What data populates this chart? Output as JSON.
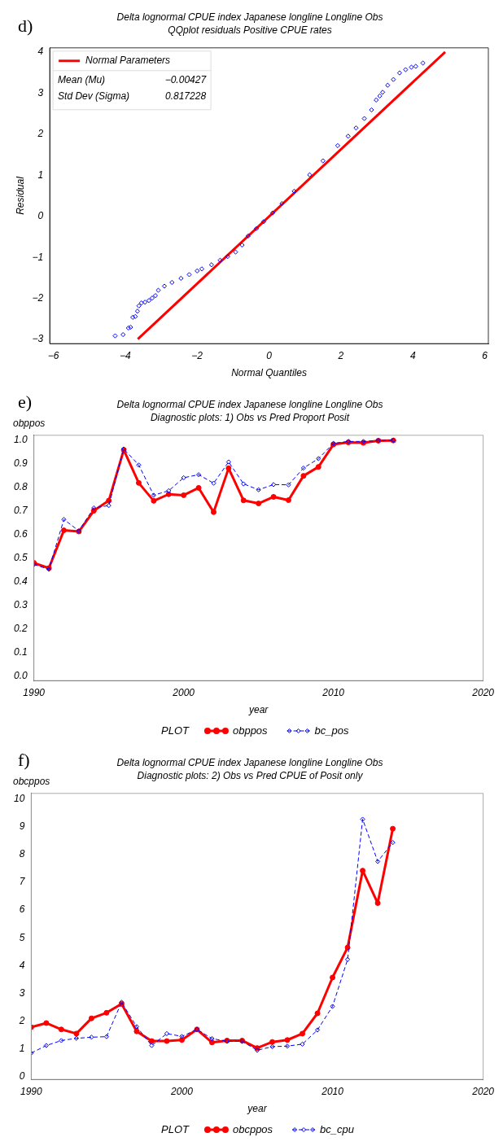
{
  "chart_data": [
    {
      "type": "scatter",
      "title": "Delta lognormal CPUE index Japanese longline Longline Obs",
      "subtitle": "QQplot residuals Positive CPUE rates",
      "xlabel": "Normal Quantiles",
      "ylabel": "Residual",
      "annotations": [
        "d)",
        "Mean (Mu)",
        "−0.00427",
        "Std Dev (Sigma)",
        "0.817228"
      ],
      "legend": "top left",
      "xlim": [
        -6.1,
        6.1
      ],
      "ylim": [
        -3.1,
        4.1
      ],
      "xticks": [
        -6,
        -4,
        -2,
        0,
        2,
        4,
        6
      ],
      "yticks": [
        -3,
        -2,
        -1,
        0,
        1,
        2,
        3,
        4
      ],
      "series": [
        {
          "type": "scatter",
          "color": "#0000ff",
          "marker": "diamond",
          "x": [
            -4.28,
            -4.06,
            -3.91,
            -3.85,
            -3.79,
            -3.72,
            -3.66,
            -3.62,
            -3.55,
            -3.45,
            -3.34,
            -3.25,
            -3.16,
            -3.08,
            -2.91,
            -2.7,
            -2.45,
            -2.22,
            -2.0,
            -1.87,
            -1.6,
            -1.36,
            -1.15,
            -0.93,
            -0.75,
            -0.58,
            -0.35,
            -0.15,
            0.1,
            0.36,
            0.7,
            1.13,
            1.5,
            1.91,
            2.2,
            2.42,
            2.65,
            2.85,
            2.98,
            3.08,
            3.16,
            3.3,
            3.46,
            3.63,
            3.8,
            3.96,
            4.08,
            4.28
          ],
          "values": [
            -2.91,
            -2.88,
            -2.72,
            -2.7,
            -2.46,
            -2.44,
            -2.31,
            -2.18,
            -2.11,
            -2.09,
            -2.05,
            -1.99,
            -1.93,
            -1.8,
            -1.7,
            -1.61,
            -1.51,
            -1.42,
            -1.33,
            -1.28,
            -1.18,
            -1.07,
            -0.98,
            -0.87,
            -0.7,
            -0.48,
            -0.3,
            -0.13,
            0.08,
            0.31,
            0.61,
            1.01,
            1.35,
            1.72,
            1.95,
            2.15,
            2.38,
            2.59,
            2.83,
            2.93,
            3.02,
            3.19,
            3.33,
            3.49,
            3.57,
            3.63,
            3.65,
            3.73
          ]
        },
        {
          "type": "line",
          "name": "Normal Parameters",
          "color": "#ff0000",
          "marker": "none",
          "line_style": "solid",
          "x": [
            -3.65,
            4.9
          ],
          "values": [
            -2.99,
            4.0
          ]
        }
      ]
    },
    {
      "type": "line",
      "title": "Delta lognormal CPUE index Japanese longline Longline Obs",
      "subtitle": "Diagnostic plots: 1) Obs vs Pred Proport Posit",
      "xlabel": "year",
      "ylabel": "obppos",
      "legend_title": "PLOT",
      "legend": "bottom",
      "annotations": [
        "e)"
      ],
      "xlim": [
        1990,
        2020
      ],
      "ylim": [
        -0.02,
        1.02
      ],
      "xticks": [
        1990,
        2000,
        2010,
        2020
      ],
      "yticks": [
        {
          "value": 0,
          "label": "0.0"
        },
        0.1,
        0.2,
        0.3,
        0.4,
        0.5,
        0.6,
        0.7,
        0.8,
        0.9,
        {
          "value": 1,
          "label": "1.0"
        }
      ],
      "x": [
        1990,
        1991,
        1992,
        1993,
        1994,
        1995,
        1996,
        1997,
        1998,
        1999,
        2000,
        2001,
        2002,
        2003,
        2004,
        2005,
        2006,
        2007,
        2008,
        2009,
        2010,
        2011,
        2012,
        2013,
        2014
      ],
      "series": [
        {
          "name": "obppos",
          "color": "#ff0000",
          "marker": "circle",
          "line_style": "solid",
          "values": [
            0.479,
            0.457,
            0.617,
            0.612,
            0.7,
            0.743,
            0.958,
            0.818,
            0.742,
            0.77,
            0.766,
            0.797,
            0.694,
            0.88,
            0.744,
            0.731,
            0.759,
            0.745,
            0.848,
            0.886,
            0.981,
            0.99,
            0.988,
            0.997,
            0.998
          ]
        },
        {
          "name": "bc_pos",
          "color": "#0000ff",
          "marker": "diamond",
          "line_style": "dashed",
          "values": [
            0.472,
            0.452,
            0.663,
            0.615,
            0.712,
            0.722,
            0.962,
            0.894,
            0.766,
            0.785,
            0.84,
            0.853,
            0.817,
            0.907,
            0.814,
            0.789,
            0.811,
            0.81,
            0.881,
            0.921,
            0.986,
            0.994,
            0.994,
            0.998,
            0.999
          ]
        }
      ]
    },
    {
      "type": "line",
      "title": "Delta lognormal CPUE index Japanese longline Longline Obs",
      "subtitle": "Diagnostic plots: 2) Obs vs Pred CPUE of Posit only",
      "xlabel": "year",
      "ylabel": "obcppos",
      "legend_title": "PLOT",
      "legend": "bottom",
      "annotations": [
        "f)"
      ],
      "xlim": [
        1990,
        2020
      ],
      "ylim": [
        -0.1,
        10.2
      ],
      "xticks": [
        1990,
        2000,
        2010,
        2020
      ],
      "yticks": [
        0,
        1,
        2,
        3,
        4,
        5,
        6,
        7,
        8,
        9,
        10
      ],
      "x": [
        1990,
        1991,
        1992,
        1993,
        1994,
        1995,
        1996,
        1997,
        1998,
        1999,
        2000,
        2001,
        2002,
        2003,
        2004,
        2005,
        2006,
        2007,
        2008,
        2009,
        2010,
        2011,
        2012,
        2013,
        2014
      ],
      "series": [
        {
          "name": "obcppos",
          "color": "#ff0000",
          "marker": "circle",
          "line_style": "solid",
          "values": [
            1.78,
            1.93,
            1.7,
            1.55,
            2.1,
            2.3,
            2.62,
            1.63,
            1.28,
            1.28,
            1.32,
            1.7,
            1.23,
            1.3,
            1.3,
            1.03,
            1.25,
            1.32,
            1.55,
            2.28,
            3.57,
            4.65,
            7.42,
            6.25,
            8.93
          ]
        },
        {
          "name": "bc_cpu",
          "color": "#0000ff",
          "marker": "diamond",
          "line_style": "dashed",
          "values": [
            0.85,
            1.12,
            1.3,
            1.38,
            1.42,
            1.44,
            2.68,
            1.8,
            1.12,
            1.55,
            1.45,
            1.7,
            1.37,
            1.27,
            1.27,
            0.95,
            1.08,
            1.1,
            1.17,
            1.68,
            2.53,
            4.22,
            9.27,
            7.75,
            8.43
          ]
        }
      ]
    }
  ]
}
